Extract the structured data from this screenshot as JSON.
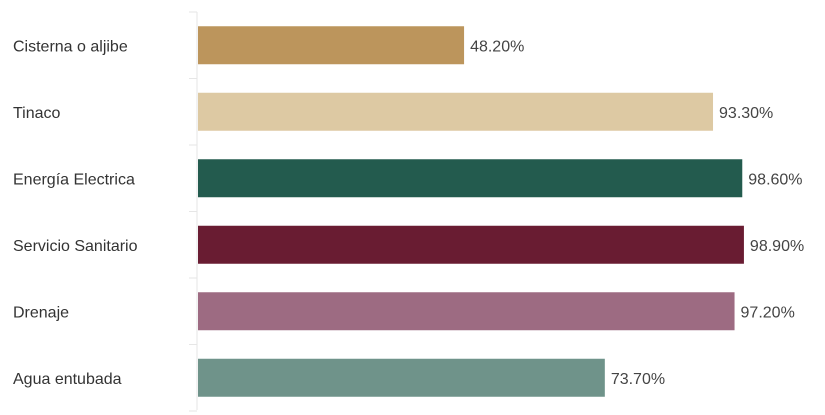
{
  "chart_data": {
    "type": "bar",
    "orientation": "horizontal",
    "categories": [
      "Cisterna o aljibe",
      "Tinaco",
      "Energía Electrica",
      "Servicio Sanitario",
      "Drenaje",
      "Agua entubada"
    ],
    "values": [
      48.2,
      93.3,
      98.6,
      98.9,
      97.2,
      73.7
    ],
    "value_labels": [
      "48.20%",
      "93.30%",
      "98.60%",
      "98.90%",
      "97.20%",
      "73.70%"
    ],
    "colors": [
      "#bc955c",
      "#ddc9a3",
      "#235b4e",
      "#691c32",
      "#9d6b82",
      "#6f938a"
    ],
    "xlim": [
      0,
      100
    ],
    "grid": false,
    "legend": "none"
  }
}
